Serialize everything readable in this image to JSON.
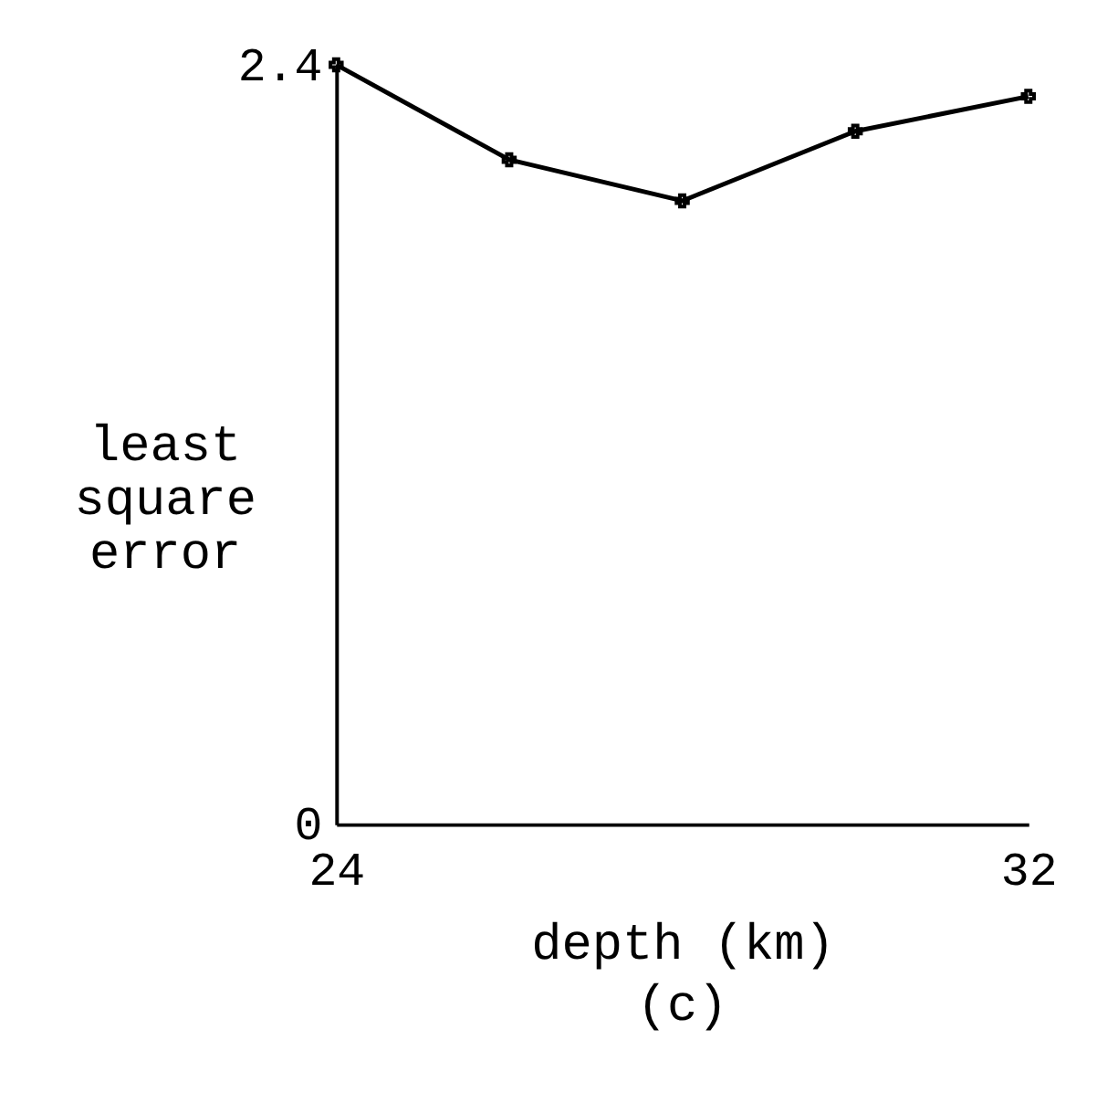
{
  "chart_data": {
    "type": "line",
    "xlabel": "depth (km)",
    "ylabel": "least square error",
    "x": [
      24,
      26,
      28,
      30,
      32
    ],
    "values": [
      2.4,
      2.1,
      1.97,
      2.19,
      2.3
    ],
    "color": "#000000",
    "xlim": [
      24,
      32
    ],
    "xticks": [
      24,
      32
    ],
    "ylim": [
      0,
      2.4
    ],
    "yticks": [
      0,
      2.4
    ],
    "marker": "cross",
    "grid": false,
    "annotations": [
      "(c)"
    ]
  }
}
